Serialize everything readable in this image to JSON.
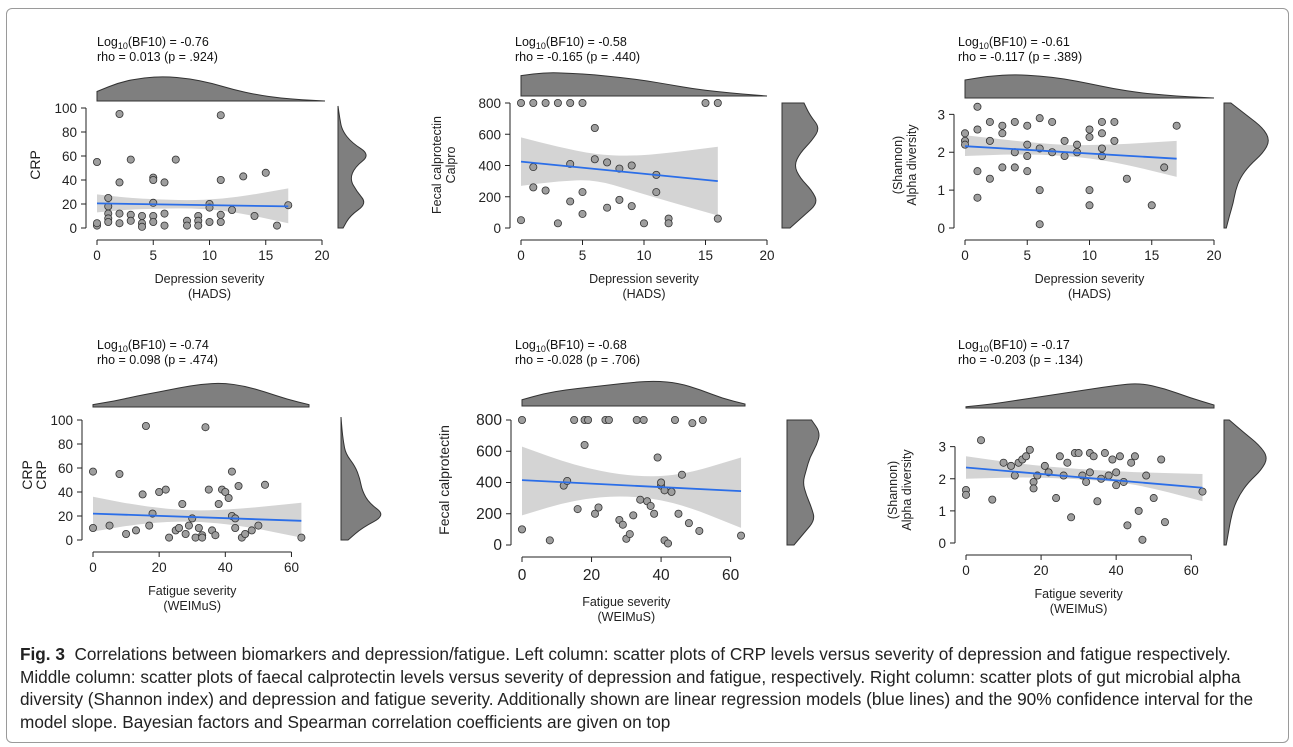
{
  "caption": {
    "label": "Fig. 3",
    "text": "Correlations between biomarkers and depression/fatigue. Left column: scatter plots of CRP levels versus severity of depression and fatigue respectively. Middle column: scatter plots of faecal calprotectin levels versus severity of depression and fatigue, respectively. Right column: scatter plots of gut microbial alpha diversity (Shannon index) and depression and fatigue severity. Additionally shown are linear regression models (blue lines) and the 90% confidence interval for the model slope. Bayesian factors and Spearman correlation coefficients are given on top"
  },
  "colors": {
    "points": "#9e9e9e",
    "point_edge": "#333333",
    "regression_line": "#2b6ee8",
    "confidence_band": "#d4d4d4",
    "density": "#7f7f7f"
  },
  "chart_data": [
    {
      "type": "scatter",
      "bf_label": "Log",
      "bf_sub": "10",
      "bf_rest": "(BF10) = -0.76",
      "rho_text": "rho = 0.013 (p = .924)",
      "xlabel": [
        "Depression severity",
        "(HADS)"
      ],
      "ylabel": [
        "CRP"
      ],
      "xlim": [
        0,
        20
      ],
      "ylim": [
        0,
        100
      ],
      "xticks": [
        0,
        5,
        10,
        15,
        20
      ],
      "yticks": [
        0,
        20,
        40,
        60,
        80,
        100
      ],
      "x": [
        0,
        0,
        0,
        1,
        1,
        1,
        1,
        1,
        2,
        2,
        2,
        2,
        3,
        3,
        3,
        4,
        4,
        4,
        5,
        5,
        5,
        5,
        5,
        6,
        6,
        6,
        7,
        8,
        8,
        9,
        9,
        9,
        10,
        10,
        10,
        11,
        11,
        11,
        11,
        12,
        13,
        14,
        15,
        16,
        17
      ],
      "y": [
        55,
        2,
        4,
        25,
        18,
        12,
        8,
        5,
        95,
        38,
        12,
        4,
        57,
        11,
        6,
        10,
        4,
        1,
        42,
        40,
        21,
        10,
        5,
        38,
        12,
        2,
        57,
        6,
        2,
        10,
        6,
        2,
        20,
        17,
        5,
        94,
        40,
        11,
        5,
        15,
        43,
        10,
        46,
        2,
        19
      ],
      "fit": {
        "x0": 0,
        "x1": 17,
        "y0": 20.5,
        "y1": 18
      },
      "band": {
        "x": [
          0,
          3,
          5,
          8,
          11,
          14,
          17
        ],
        "lo": [
          13,
          15.5,
          16,
          16.5,
          15,
          10,
          4
        ],
        "hi": [
          28,
          25,
          24,
          23,
          24,
          28,
          33
        ]
      },
      "top_density": [
        0.38,
        0.75,
        0.93,
        0.98,
        0.9,
        0.72,
        0.45,
        0.25,
        0.12,
        0.05,
        0
      ],
      "right_density": [
        0.15,
        0.35,
        0.85,
        0.55,
        0.35,
        0.5,
        0.95,
        0.4,
        0.12,
        0.05,
        0
      ]
    },
    {
      "type": "scatter",
      "bf_label": "Log",
      "bf_sub": "10",
      "bf_rest": "(BF10) = -0.58",
      "rho_text": "rho = -0.165  (p = .440)",
      "xlabel": [
        "Depression severity",
        "(HADS)"
      ],
      "ylabel": [
        "Calpro",
        "Fecal calprotectin"
      ],
      "xlim": [
        0,
        20
      ],
      "ylim": [
        0,
        800
      ],
      "xticks": [
        0,
        5,
        10,
        15,
        20
      ],
      "yticks": [
        0,
        200,
        400,
        600,
        800
      ],
      "x": [
        0,
        0,
        1,
        1,
        1,
        2,
        2,
        3,
        3,
        4,
        4,
        4,
        5,
        5,
        5,
        6,
        6,
        7,
        7,
        8,
        8,
        9,
        9,
        10,
        11,
        11,
        12,
        12,
        15,
        16,
        16
      ],
      "y": [
        800,
        50,
        800,
        390,
        260,
        800,
        240,
        800,
        30,
        800,
        170,
        410,
        800,
        90,
        230,
        640,
        440,
        420,
        130,
        180,
        380,
        140,
        400,
        30,
        340,
        230,
        60,
        30,
        800,
        800,
        60
      ],
      "fit": {
        "x0": 0,
        "x1": 16,
        "y0": 425,
        "y1": 300
      },
      "band": {
        "x": [
          0,
          3,
          6,
          9,
          12,
          16
        ],
        "lo": [
          270,
          300,
          310,
          240,
          170,
          80
        ],
        "hi": [
          580,
          520,
          470,
          460,
          480,
          520
        ]
      },
      "top_density": [
        0.85,
        0.98,
        0.95,
        0.88,
        0.78,
        0.65,
        0.48,
        0.3,
        0.18,
        0.08,
        0
      ],
      "right_density": [
        0.2,
        0.55,
        0.9,
        0.75,
        0.45,
        0.3,
        0.45,
        0.75,
        0.95,
        0.7,
        0.55
      ]
    },
    {
      "type": "scatter",
      "bf_label": "Log",
      "bf_sub": "10",
      "bf_rest": "(BF10) = -0.61",
      "rho_text": "rho = -0.117 (p = .389)",
      "xlabel": [
        "Depression severity",
        "(HADS)"
      ],
      "ylabel": [
        "Alpha diversity",
        "(Shannon)"
      ],
      "xlim": [
        0,
        20
      ],
      "ylim": [
        0,
        3.3
      ],
      "xticks": [
        0,
        5,
        10,
        15,
        20
      ],
      "yticks": [
        0,
        1,
        2,
        3
      ],
      "x": [
        0,
        0,
        0,
        1,
        1,
        1,
        1,
        2,
        2,
        2,
        3,
        3,
        3,
        4,
        4,
        4,
        5,
        5,
        5,
        5,
        6,
        6,
        6,
        6,
        7,
        7,
        8,
        8,
        9,
        9,
        10,
        10,
        10,
        10,
        11,
        11,
        11,
        11,
        12,
        12,
        13,
        15,
        16,
        17
      ],
      "y": [
        2.5,
        2.3,
        2.2,
        3.2,
        2.6,
        1.5,
        0.8,
        2.8,
        2.3,
        1.3,
        2.7,
        2.5,
        1.6,
        2.8,
        2.0,
        1.6,
        2.7,
        2.2,
        1.9,
        1.5,
        2.9,
        2.1,
        1.0,
        0.1,
        2.8,
        2.0,
        2.3,
        1.9,
        2.2,
        2.0,
        2.6,
        2.4,
        1.0,
        0.6,
        2.8,
        2.5,
        2.1,
        1.9,
        2.8,
        2.3,
        1.3,
        0.6,
        1.6,
        2.7
      ],
      "fit": {
        "x0": 0,
        "x1": 17,
        "y0": 2.16,
        "y1": 1.83
      },
      "band": {
        "x": [
          0,
          4,
          8,
          12,
          17
        ],
        "lo": [
          1.9,
          1.95,
          1.92,
          1.75,
          1.35
        ],
        "hi": [
          2.45,
          2.3,
          2.18,
          2.2,
          2.3
        ]
      },
      "top_density": [
        0.75,
        0.92,
        0.98,
        0.92,
        0.8,
        0.6,
        0.38,
        0.22,
        0.12,
        0.05,
        0
      ],
      "right_density": [
        0.05,
        0.12,
        0.2,
        0.25,
        0.35,
        0.55,
        0.85,
        1.0,
        0.85,
        0.5,
        0.15
      ]
    },
    {
      "type": "scatter",
      "bf_label": "Log",
      "bf_sub": "10",
      "bf_rest": "(BF10) = -0.74",
      "rho_text": "rho = 0.098 (p = .474)",
      "xlabel": [
        "Fatigue severity",
        "(WEIMuS)"
      ],
      "ylabel": [
        "CRP",
        "CRP"
      ],
      "xlim": [
        0,
        65
      ],
      "ylim": [
        0,
        100
      ],
      "xticks": [
        0,
        20,
        40,
        60
      ],
      "yticks": [
        0,
        20,
        40,
        60,
        80,
        100
      ],
      "x": [
        0,
        0,
        5,
        8,
        10,
        13,
        15,
        16,
        17,
        18,
        20,
        22,
        23,
        25,
        26,
        27,
        28,
        29,
        30,
        31,
        32,
        33,
        33,
        34,
        35,
        36,
        37,
        38,
        39,
        40,
        41,
        42,
        42,
        43,
        43,
        44,
        45,
        46,
        48,
        50,
        52,
        63
      ],
      "y": [
        57,
        10,
        12,
        55,
        5,
        8,
        38,
        95,
        12,
        22,
        40,
        42,
        2,
        8,
        10,
        30,
        5,
        12,
        18,
        2,
        10,
        4,
        2,
        94,
        42,
        8,
        4,
        30,
        42,
        40,
        35,
        57,
        20,
        18,
        10,
        45,
        2,
        5,
        8,
        12,
        46,
        2
      ],
      "fit": {
        "x0": 0,
        "x1": 63,
        "y0": 22,
        "y1": 16
      },
      "band": {
        "x": [
          0,
          15,
          30,
          45,
          63
        ],
        "lo": [
          7,
          14,
          16,
          12,
          2
        ],
        "hi": [
          36,
          28,
          24,
          26,
          31
        ]
      },
      "top_density": [
        0.1,
        0.25,
        0.45,
        0.62,
        0.8,
        0.95,
        1.0,
        0.88,
        0.62,
        0.32,
        0.1
      ],
      "right_density": [
        0.15,
        0.45,
        0.95,
        0.6,
        0.45,
        0.4,
        0.3,
        0.1,
        0.05,
        0.02,
        0
      ]
    },
    {
      "type": "scatter",
      "bf_label": "Log",
      "bf_sub": "10",
      "bf_rest": "(BF10) = -0.68",
      "rho_text": "rho = -0.028 (p = .706)",
      "xlabel": [
        "Fatigue severity",
        "(WEIMuS)"
      ],
      "ylabel": [
        "Fecal calprotectin"
      ],
      "xlim": [
        0,
        65
      ],
      "ylim": [
        0,
        800
      ],
      "xticks": [
        0,
        20,
        40,
        60
      ],
      "yticks": [
        0,
        200,
        400,
        600,
        800
      ],
      "x": [
        0,
        0,
        8,
        12,
        13,
        15,
        16,
        18,
        18,
        19,
        21,
        22,
        24,
        25,
        28,
        29,
        30,
        31,
        32,
        33,
        34,
        35,
        36,
        37,
        38,
        39,
        40,
        40,
        41,
        41,
        42,
        43,
        44,
        45,
        46,
        48,
        49,
        51,
        52,
        63
      ],
      "y": [
        800,
        100,
        30,
        380,
        410,
        800,
        230,
        800,
        640,
        800,
        200,
        240,
        800,
        800,
        160,
        130,
        40,
        70,
        190,
        800,
        290,
        800,
        280,
        250,
        200,
        560,
        380,
        400,
        350,
        30,
        10,
        340,
        800,
        200,
        450,
        140,
        780,
        90,
        800,
        60
      ],
      "fit": {
        "x0": 0,
        "x1": 63,
        "y0": 415,
        "y1": 345
      },
      "band": {
        "x": [
          0,
          15,
          30,
          45,
          63
        ],
        "lo": [
          190,
          290,
          320,
          270,
          110
        ],
        "hi": [
          630,
          510,
          440,
          440,
          560
        ]
      },
      "top_density": [
        0.25,
        0.5,
        0.65,
        0.75,
        0.85,
        0.95,
        1.0,
        0.92,
        0.65,
        0.3,
        0.08
      ],
      "right_density": [
        0.2,
        0.5,
        0.8,
        0.7,
        0.55,
        0.45,
        0.55,
        0.65,
        0.85,
        0.95,
        0.7
      ]
    },
    {
      "type": "scatter",
      "bf_label": "Log",
      "bf_sub": "10",
      "bf_rest": "(BF10) = -0.17",
      "rho_text": "rho = -0.203 (p = .134)",
      "xlabel": [
        "Fatigue severity",
        "(WEIMuS)"
      ],
      "ylabel": [
        "Alpha diversity",
        "(Shannon)"
      ],
      "xlim": [
        0,
        65
      ],
      "ylim": [
        0,
        3.3
      ],
      "xticks": [
        0,
        20,
        40,
        60
      ],
      "yticks": [
        0,
        1,
        2,
        3
      ],
      "x": [
        0,
        0,
        4,
        7,
        10,
        12,
        13,
        14,
        15,
        16,
        17,
        18,
        18,
        19,
        21,
        22,
        24,
        25,
        26,
        27,
        28,
        29,
        30,
        31,
        32,
        33,
        33,
        34,
        35,
        36,
        37,
        38,
        39,
        40,
        40,
        41,
        42,
        43,
        44,
        45,
        46,
        47,
        48,
        50,
        52,
        53,
        63
      ],
      "y": [
        1.65,
        1.5,
        3.2,
        1.35,
        2.5,
        2.4,
        2.1,
        2.5,
        2.6,
        2.7,
        2.9,
        1.9,
        1.7,
        2.1,
        2.4,
        2.2,
        1.4,
        2.7,
        2.1,
        2.5,
        0.8,
        2.8,
        2.8,
        2.1,
        1.9,
        2.2,
        2.8,
        2.7,
        1.3,
        2.0,
        2.8,
        2.1,
        2.6,
        2.2,
        1.8,
        2.7,
        1.9,
        0.55,
        2.5,
        2.7,
        1.0,
        0.1,
        2.1,
        1.4,
        2.6,
        0.65,
        1.6
      ],
      "fit": {
        "x0": 0,
        "x1": 63,
        "y0": 2.35,
        "y1": 1.72
      },
      "band": {
        "x": [
          0,
          15,
          30,
          45,
          63
        ],
        "lo": [
          2.0,
          2.05,
          2.0,
          1.85,
          1.3
        ],
        "hi": [
          2.7,
          2.45,
          2.3,
          2.2,
          2.15
        ]
      },
      "top_density": [
        0.05,
        0.15,
        0.3,
        0.45,
        0.6,
        0.75,
        0.9,
        1.0,
        0.78,
        0.42,
        0.12
      ],
      "right_density": [
        0.05,
        0.1,
        0.15,
        0.22,
        0.35,
        0.55,
        0.85,
        1.0,
        0.8,
        0.45,
        0.12
      ]
    }
  ]
}
